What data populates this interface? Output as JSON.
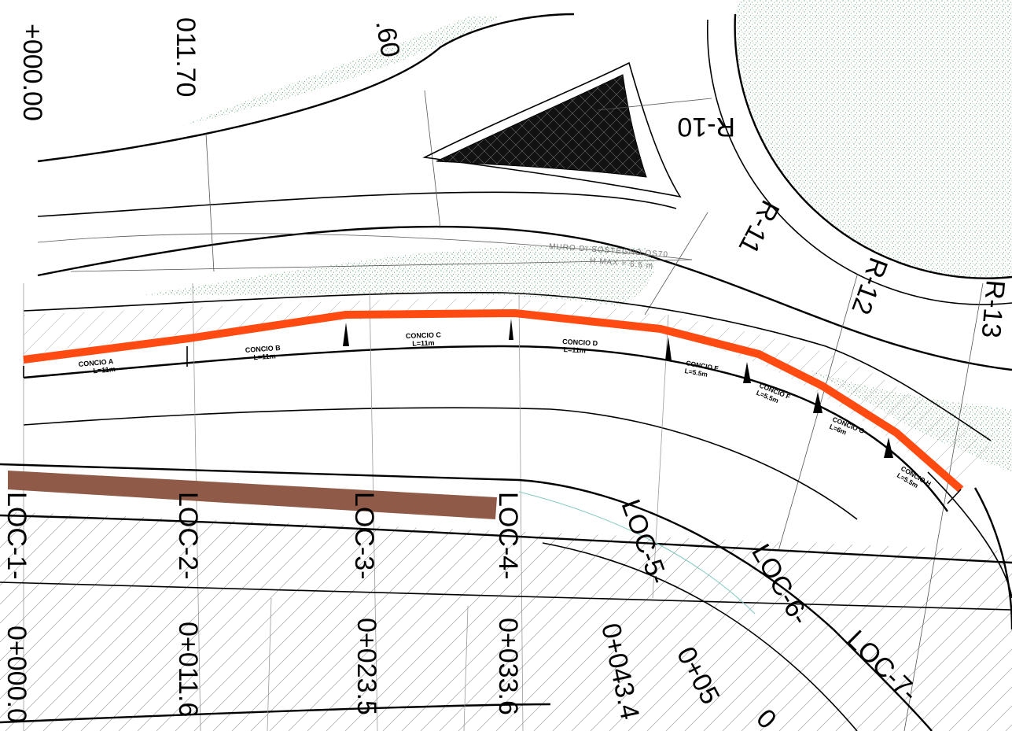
{
  "colors": {
    "wall_line": "#ff4a12",
    "brown_band": "#8f5a47",
    "vegetation": "#2f8a4a",
    "triangle_fill": "#111111"
  },
  "top_stations": {
    "s0": "+000.00",
    "s1": "011.70",
    "s2": ".60"
  },
  "radials": {
    "r10": "R-10",
    "r11": "R-11",
    "r12": "R-12",
    "r13": "R-13"
  },
  "wall_note": {
    "line1": "MURO  DI  SOSTEGNO  OS70",
    "line2": "H  MAX  =  6.5  m"
  },
  "segments": [
    {
      "name": "CONCIO A",
      "length": "L=11m"
    },
    {
      "name": "CONCIO B",
      "length": "L=11m"
    },
    {
      "name": "CONCIO C",
      "length": "L=11m"
    },
    {
      "name": "CONCIO D",
      "length": "L=11m"
    },
    {
      "name": "CONCIO E",
      "length": "L=5.5m"
    },
    {
      "name": "CONCIO F",
      "length": "L=5.5m"
    },
    {
      "name": "CONCIO G",
      "length": "L=6m"
    },
    {
      "name": "CONCIO H",
      "length": "L=5.5m"
    }
  ],
  "sections": [
    {
      "name": "LOC-1-",
      "station": "0+000.0"
    },
    {
      "name": "LOC-2-",
      "station": "0+011.6"
    },
    {
      "name": "LOC-3-",
      "station": "0+023.5"
    },
    {
      "name": "LOC-4-",
      "station": "0+033.6"
    },
    {
      "name": "LOC-5-",
      "station": "0+043.4"
    },
    {
      "name": "LOC-6-",
      "station": "0+05"
    },
    {
      "name": "LOC-7-",
      "station": "0"
    }
  ]
}
